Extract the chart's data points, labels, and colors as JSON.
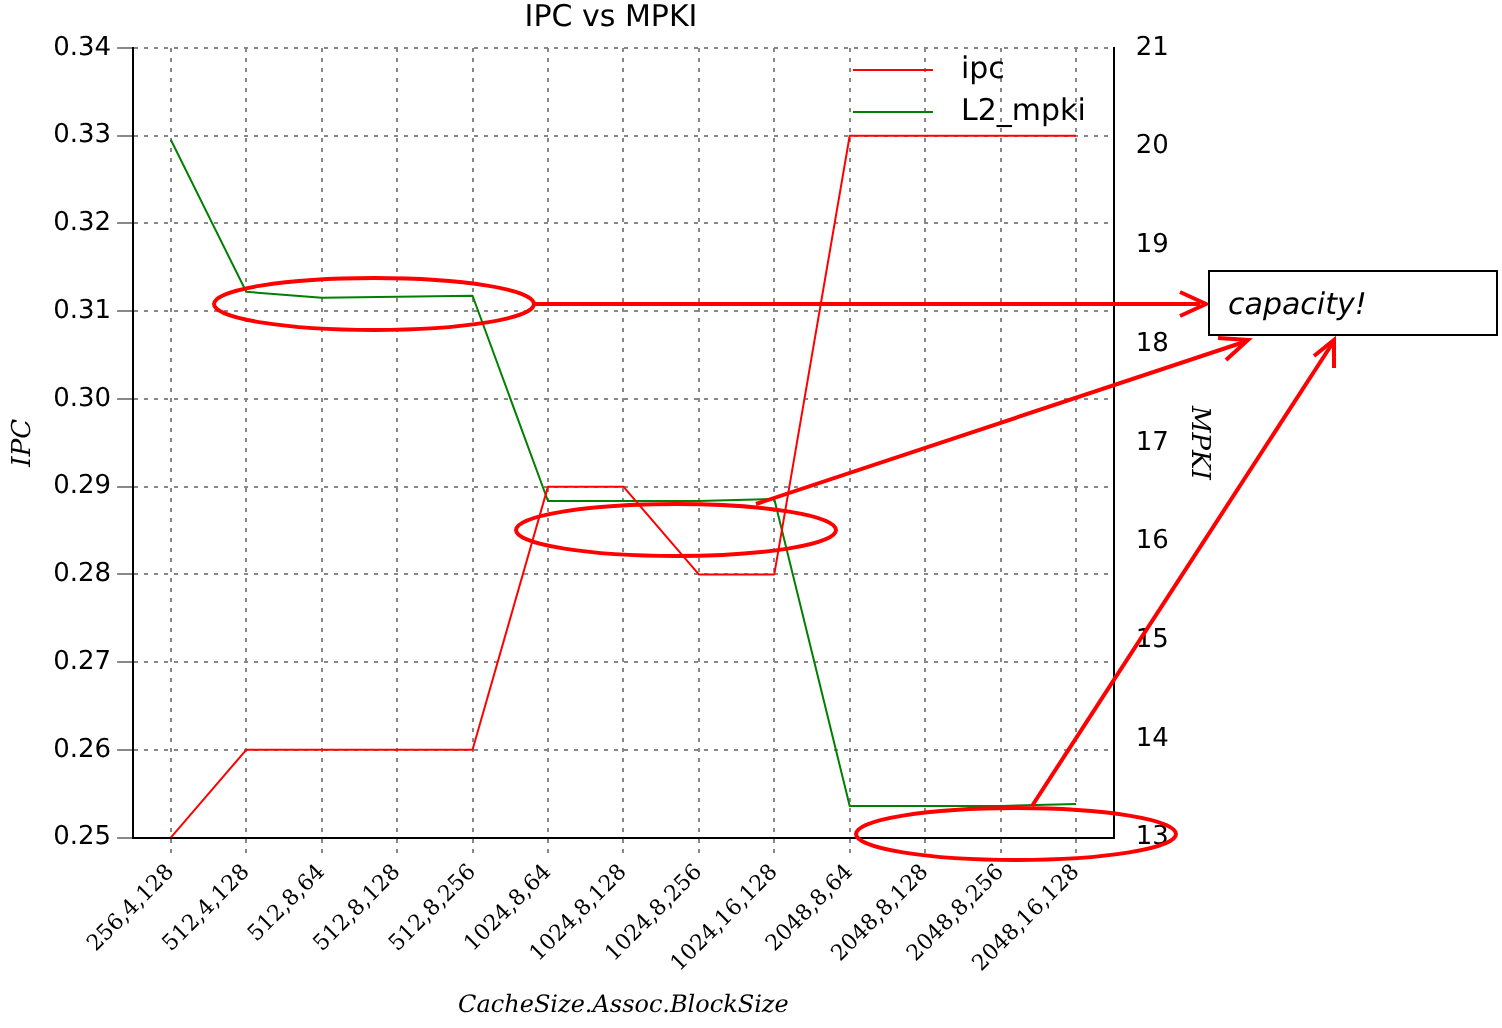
{
  "chart_data": {
    "type": "line",
    "title": "IPC vs MPKI",
    "xlabel": "CacheSize.Assoc.BlockSize",
    "ylabel": "IPC",
    "y2label": "MPKI",
    "categories": [
      "256,4,128",
      "512,4,128",
      "512,8,64",
      "512,8,128",
      "512,8,256",
      "1024,8,64",
      "1024,8,128",
      "1024,8,256",
      "1024,16,128",
      "2048,8,64",
      "2048,8,128",
      "2048,8,256",
      "2048,16,128"
    ],
    "series": [
      {
        "name": "ipc",
        "color": "#ff0000",
        "values": [
          0.25,
          0.26,
          0.26,
          0.26,
          0.26,
          0.29,
          0.29,
          0.28,
          0.28,
          0.33,
          0.33,
          0.33,
          0.33
        ]
      },
      {
        "name": "L2_mpki",
        "color": "#008000",
        "axis": "y2",
        "values": [
          20.07,
          18.53,
          18.47,
          18.48,
          18.49,
          16.41,
          16.41,
          16.41,
          16.43,
          13.32,
          13.32,
          13.32,
          13.34
        ]
      }
    ],
    "ylim": [
      0.25,
      0.34
    ],
    "yticks": [
      0.25,
      0.26,
      0.27,
      0.28,
      0.29,
      {
        "value": 0.3,
        "label": "0.30"
      },
      0.31,
      0.32,
      0.33,
      0.34
    ],
    "y2lim": [
      13,
      21
    ],
    "y2ticks": [
      13,
      14,
      15,
      16,
      17,
      18,
      19,
      20,
      21
    ],
    "grid": true,
    "legend": "top right",
    "marker": "none",
    "line_style": "solid",
    "annotations": [
      "capacity!"
    ]
  }
}
